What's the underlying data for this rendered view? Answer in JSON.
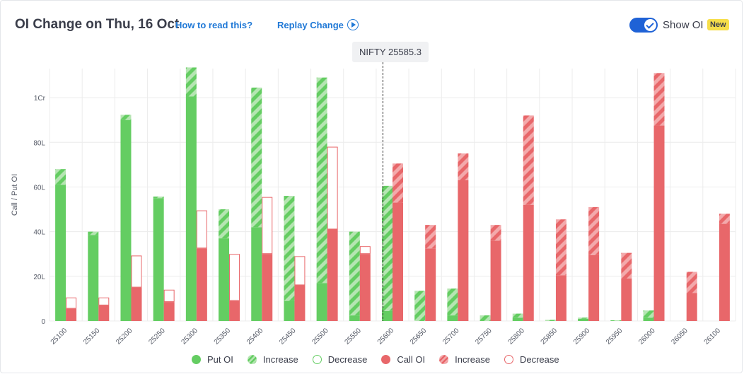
{
  "header": {
    "title": "OI Change on Thu, 16 Oct",
    "how_to_read": "How to read this?",
    "replay": "Replay Change",
    "show_oi": "Show OI",
    "badge": "New"
  },
  "spot_label": "NIFTY 25585.3",
  "colors": {
    "put": "#64cd62",
    "put_light": "#b5e5b2",
    "call": "#e8676a",
    "call_light": "#f3a9ab",
    "grid": "#ececec",
    "axis_text": "#555a66"
  },
  "legend": [
    {
      "label": "Put OI",
      "style": "put-solid"
    },
    {
      "label": "Increase",
      "style": "put-hatch"
    },
    {
      "label": "Decrease",
      "style": "put-outline"
    },
    {
      "label": "Call OI",
      "style": "call-solid"
    },
    {
      "label": "Increase",
      "style": "call-hatch"
    },
    {
      "label": "Decrease",
      "style": "call-outline"
    }
  ],
  "chart_data": {
    "type": "bar",
    "ylabel": "Call / Put OI",
    "ylim": [
      0,
      113
    ],
    "y_unit": "L",
    "yticks": [
      {
        "value": 0,
        "label": "0"
      },
      {
        "value": 20,
        "label": "20L"
      },
      {
        "value": 40,
        "label": "40L"
      },
      {
        "value": 60,
        "label": "60L"
      },
      {
        "value": 80,
        "label": "80L"
      },
      {
        "value": 100,
        "label": "1Cr"
      }
    ],
    "spot": 25585.3,
    "categories": [
      "25100",
      "25150",
      "25200",
      "25250",
      "25300",
      "25350",
      "25400",
      "25450",
      "25500",
      "25550",
      "25600",
      "25650",
      "25700",
      "25750",
      "25800",
      "25850",
      "25900",
      "25950",
      "26000",
      "26050",
      "26100"
    ],
    "series": [
      {
        "name": "Put OI",
        "base": [
          61,
          38.5,
          90,
          55,
          100.5,
          37,
          42,
          9,
          17,
          2.5,
          4.5,
          0,
          2.5,
          0,
          1.5,
          0,
          1,
          0,
          1.5,
          0,
          0
        ],
        "change": [
          7,
          1.5,
          2.3,
          0.7,
          13,
          13,
          62.5,
          47,
          92,
          37.5,
          56,
          13.5,
          12,
          2.5,
          1.8,
          0.5,
          0.5,
          0.3,
          3.2,
          0,
          0
        ]
      },
      {
        "name": "Call OI",
        "base": [
          5.5,
          7,
          15,
          8.5,
          32.5,
          9,
          30,
          16,
          41,
          30,
          53,
          32.5,
          63,
          36,
          52,
          20.5,
          29.5,
          19,
          87.5,
          12.5,
          43.5
        ],
        "change": [
          -5,
          -3.5,
          -14.3,
          -5.5,
          -17,
          -21,
          -25.5,
          -13,
          -37,
          -3.5,
          17.5,
          10.5,
          12,
          7,
          40,
          25,
          21.5,
          11.5,
          23.5,
          9.5,
          4.5
        ]
      }
    ]
  }
}
